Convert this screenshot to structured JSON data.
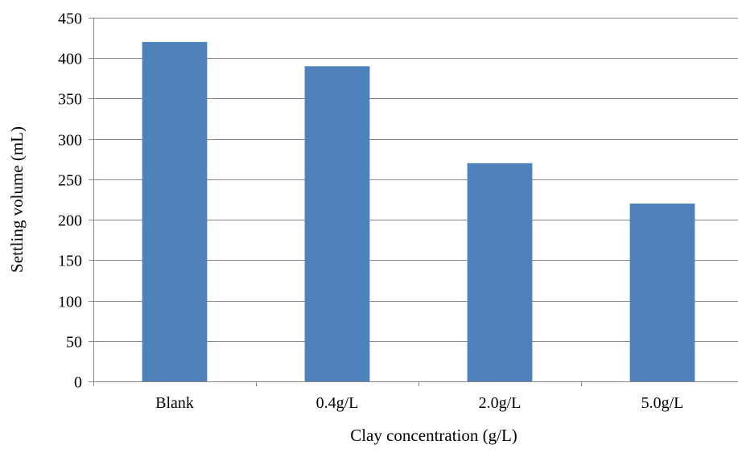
{
  "chart_data": {
    "type": "bar",
    "title": "",
    "xlabel": "Clay concentration (g/L)",
    "ylabel": "Settling volume (mL)",
    "categories": [
      "Blank",
      "0.4g/L",
      "2.0g/L",
      "5.0g/L"
    ],
    "values": [
      420,
      390,
      270,
      220
    ],
    "ylim": [
      0,
      450
    ],
    "yticks": [
      0,
      50,
      100,
      150,
      200,
      250,
      300,
      350,
      400,
      450
    ],
    "grid": "horizontal",
    "legend": "none",
    "colors": {
      "bar": "#4F81BD",
      "grid": "#868686",
      "axis": "#868686"
    }
  }
}
